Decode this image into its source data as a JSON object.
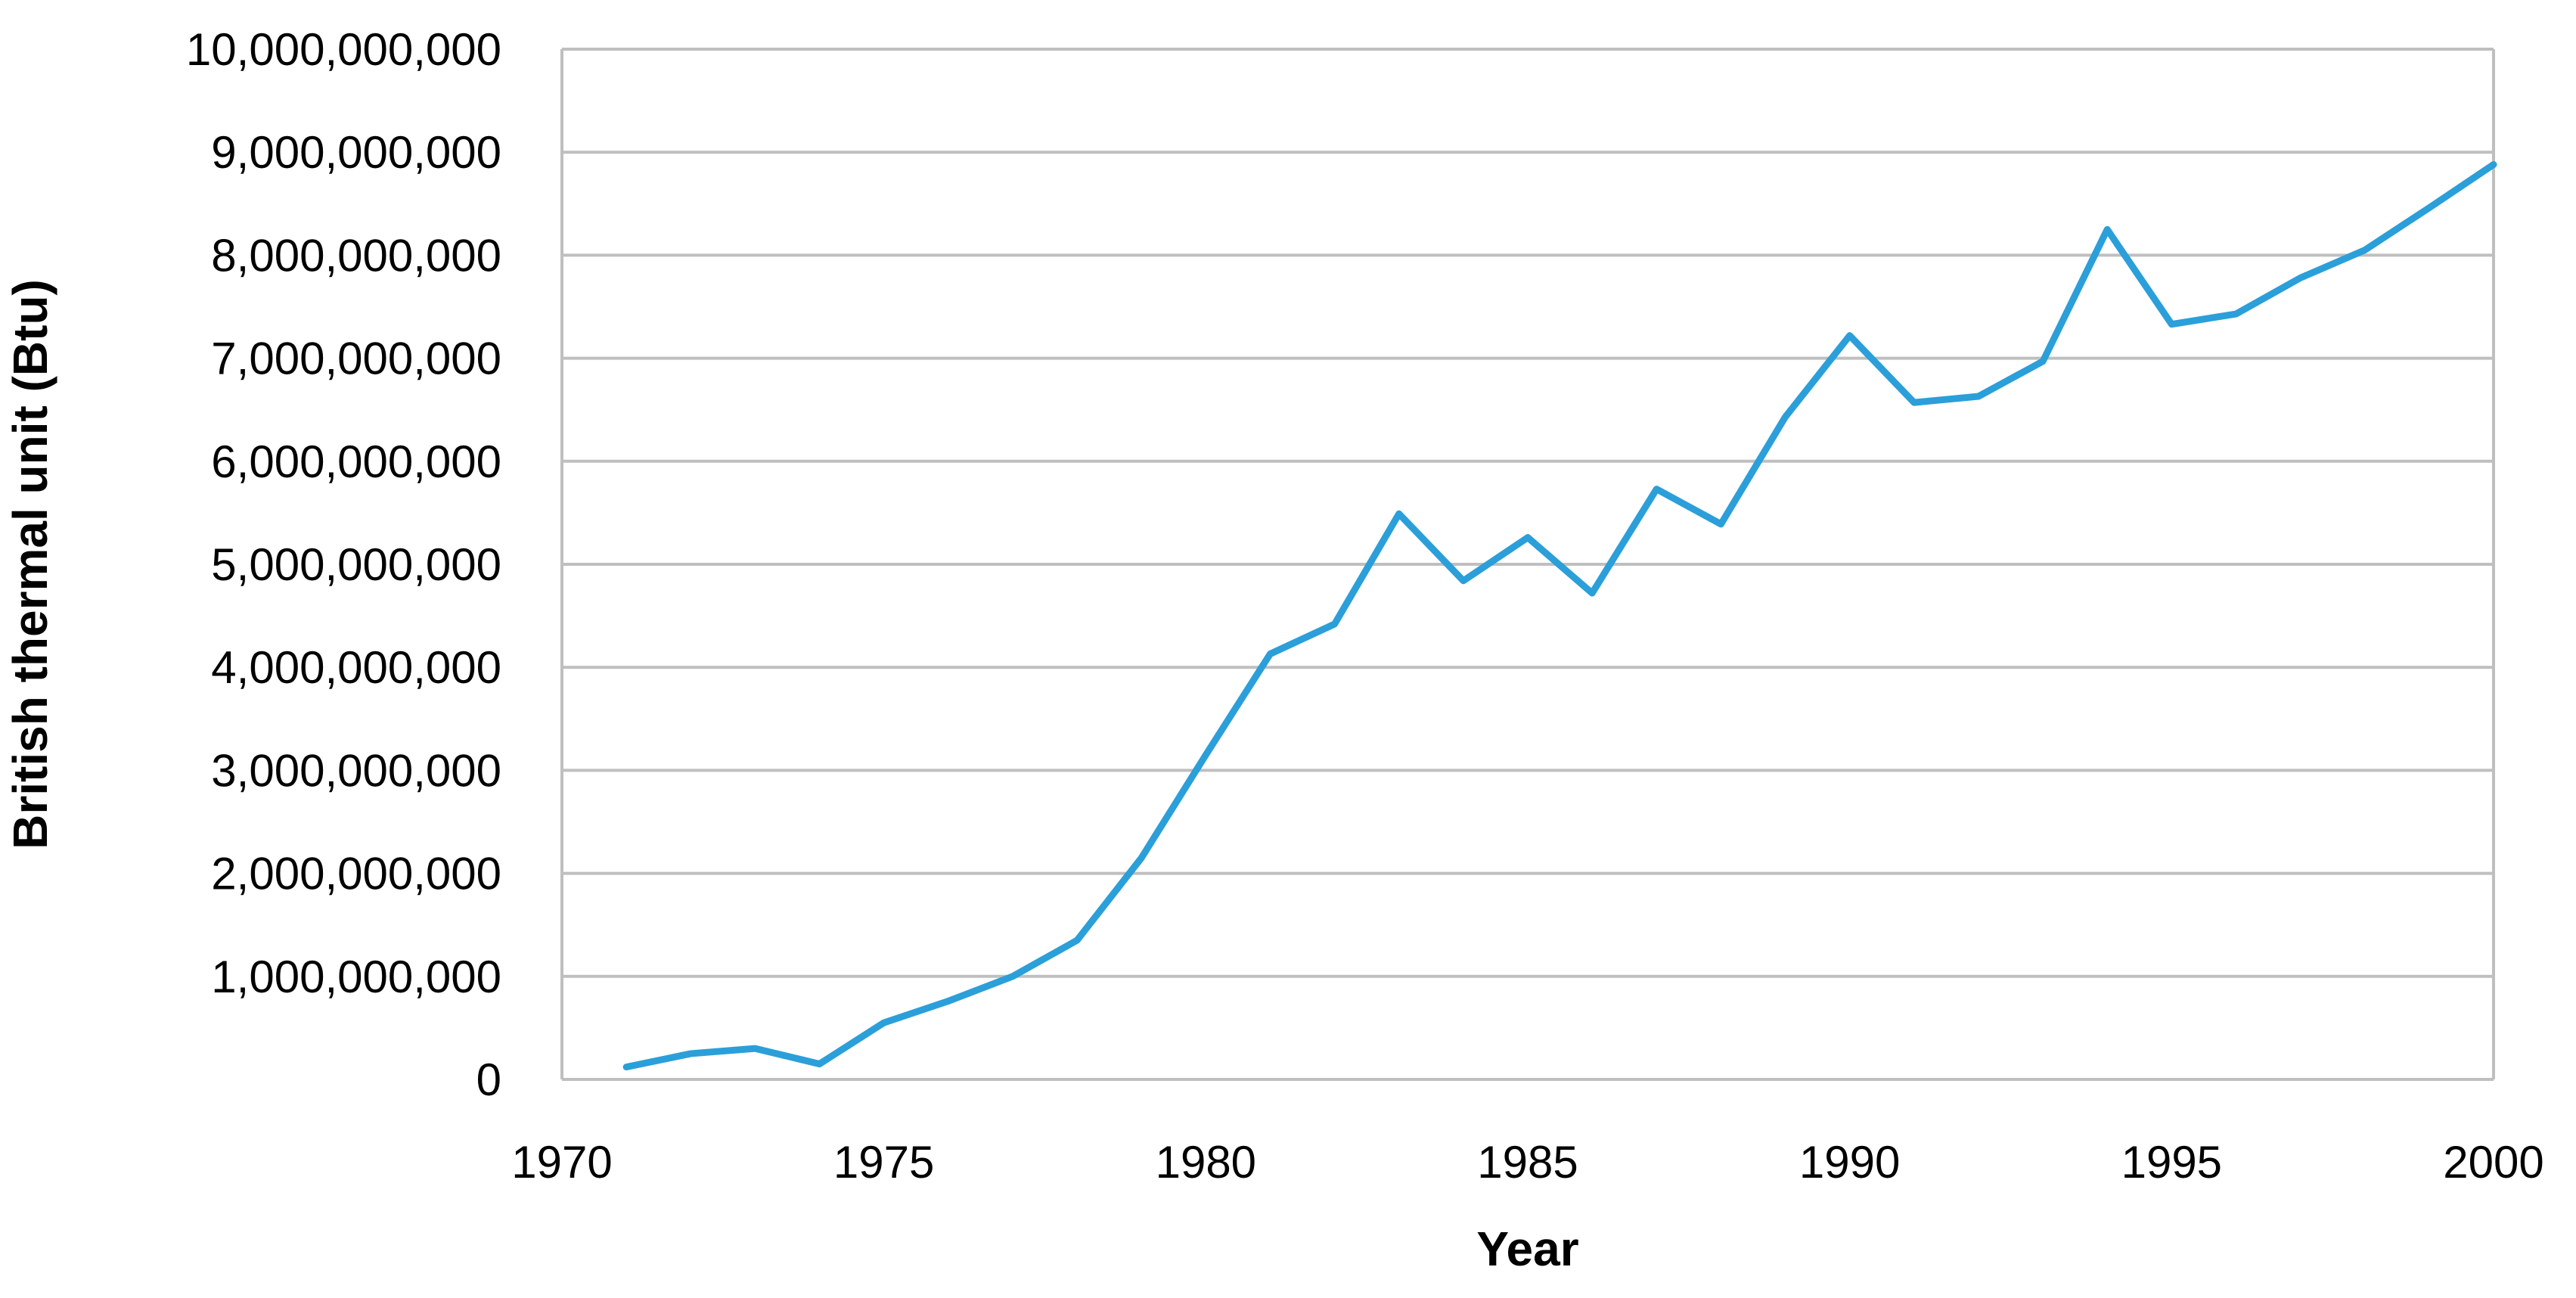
{
  "chart_data": {
    "type": "line",
    "xlabel": "Year",
    "ylabel": "British thermal unit (Btu)",
    "xlim": [
      1970,
      2000
    ],
    "ylim": [
      0,
      10000000000
    ],
    "x_ticks": [
      "1970",
      "1975",
      "1980",
      "1985",
      "1990",
      "1995",
      "2000"
    ],
    "y_ticks": [
      "0",
      "1,000,000,000",
      "2,000,000,000",
      "3,000,000,000",
      "4,000,000,000",
      "5,000,000,000",
      "6,000,000,000",
      "7,000,000,000",
      "8,000,000,000",
      "9,000,000,000",
      "10,000,000,000"
    ],
    "grid": true,
    "legend": "none",
    "series": [
      {
        "color": "#2b9fd9",
        "x": [
          1971,
          1972,
          1973,
          1974,
          1975,
          1976,
          1977,
          1978,
          1979,
          1980,
          1981,
          1982,
          1983,
          1984,
          1985,
          1986,
          1987,
          1988,
          1989,
          1990,
          1991,
          1992,
          1993,
          1994,
          1995,
          1996,
          1997,
          1998,
          1999,
          2000
        ],
        "values": [
          120000000,
          250000000,
          300000000,
          150000000,
          550000000,
          760000000,
          1000000000,
          1350000000,
          2150000000,
          3150000000,
          4130000000,
          4420000000,
          5490000000,
          4840000000,
          5260000000,
          4720000000,
          5730000000,
          5390000000,
          6430000000,
          7220000000,
          6570000000,
          6630000000,
          6970000000,
          8250000000,
          7330000000,
          7430000000,
          7780000000,
          8050000000,
          8460000000,
          8880000000
        ]
      }
    ]
  }
}
